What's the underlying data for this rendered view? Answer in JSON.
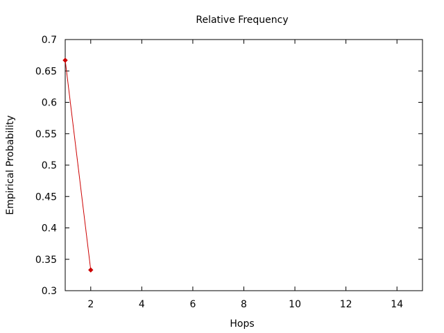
{
  "chart_data": {
    "type": "line",
    "title": "Relative Frequency",
    "xlabel": "Hops",
    "ylabel": "Empirical Probability",
    "xlim": [
      1,
      15
    ],
    "ylim": [
      0.3,
      0.7
    ],
    "x_ticks": [
      2,
      4,
      6,
      8,
      10,
      12,
      14
    ],
    "y_ticks": [
      0.3,
      0.35,
      0.4,
      0.45,
      0.5,
      0.55,
      0.6,
      0.65,
      0.7
    ],
    "grid": false,
    "series": [
      {
        "x": [
          1,
          2
        ],
        "y": [
          0.667,
          0.333
        ],
        "color": "#cc0000",
        "marker": "diamond"
      }
    ]
  }
}
